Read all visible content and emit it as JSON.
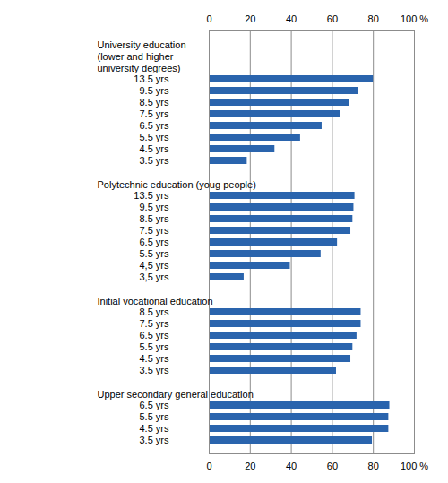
{
  "chart_data": {
    "type": "bar",
    "orientation": "horizontal",
    "categories": [
      null,
      "University education\n(lower and higher\nuniversity degrees)",
      null,
      "13.5 yrs",
      "9.5 yrs",
      "8.5 yrs",
      "7.5 yrs",
      "6.5 yrs",
      "5.5 yrs",
      "4.5 yrs",
      "3.5 yrs",
      null,
      "Polytechnic education (youg people)",
      "13.5 yrs",
      "9.5 yrs",
      "8.5 yrs",
      "7.5 yrs",
      "6.5 yrs",
      "5.5 yrs",
      "4,5 yrs",
      "3,5 yrs",
      null,
      "Initial vocational education",
      "8.5 yrs",
      "7.5 yrs",
      "6.5 yrs",
      "5.5 yrs",
      "4.5 yrs",
      "3.5 yrs",
      null,
      "Upper secondary general education",
      "6.5 yrs",
      "5.5 yrs",
      "4.5 yrs",
      "3.5 yrs"
    ],
    "values": [
      null,
      null,
      null,
      80,
      72.5,
      68.5,
      64,
      55,
      44.5,
      32,
      18.5,
      null,
      null,
      71,
      70.5,
      70,
      69,
      62.5,
      54.5,
      39.5,
      17,
      null,
      null,
      74,
      74,
      72,
      70,
      69,
      62,
      null,
      null,
      88,
      87.5,
      87.5,
      79.5
    ],
    "color": "#2a64ad",
    "xlim": [
      0,
      100
    ],
    "xticks": [
      0,
      20,
      40,
      60,
      80,
      {
        "value": 100,
        "label": "100 %"
      }
    ],
    "grid": true
  }
}
